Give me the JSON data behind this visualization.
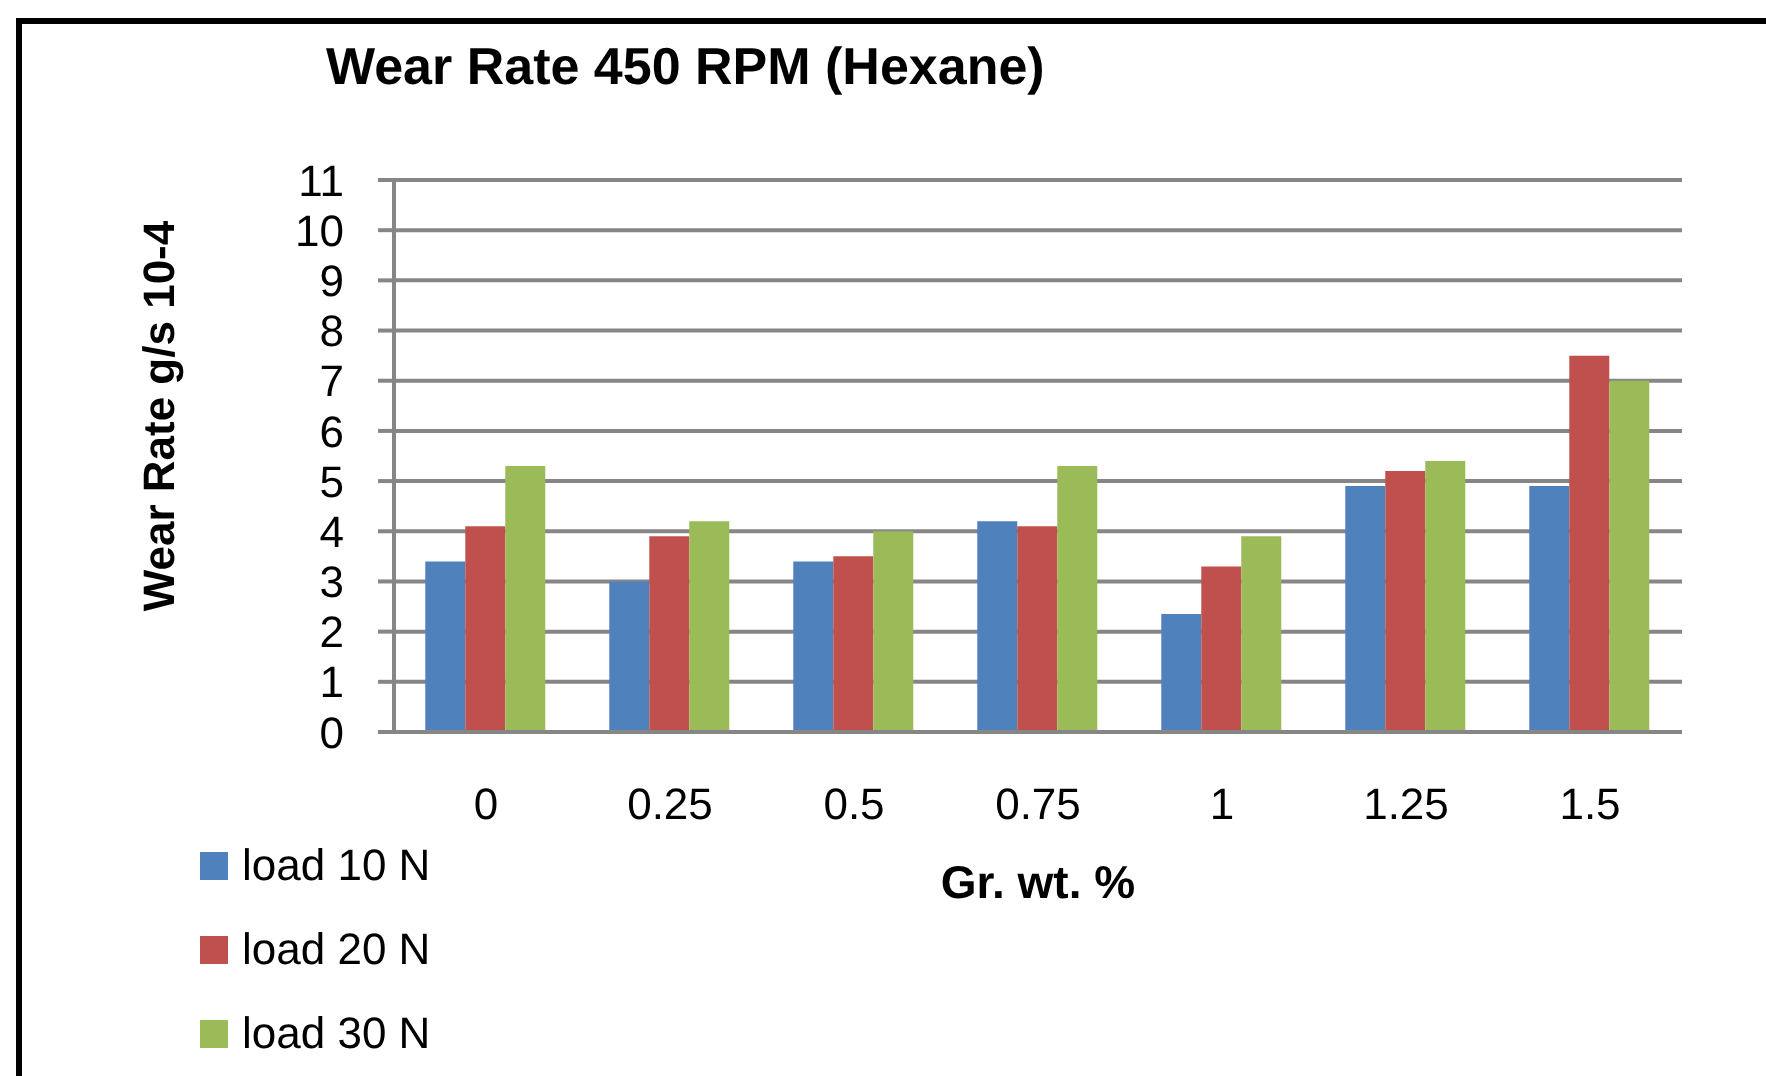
{
  "chart_data": {
    "type": "bar",
    "title": "Wear Rate 450 RPM (Hexane)",
    "xlabel": "Gr. wt. %",
    "ylabel": "Wear Rate g/s 10-4",
    "categories": [
      "0",
      "0.25",
      "0.5",
      "0.75",
      "1",
      "1.25",
      "1.5"
    ],
    "series": [
      {
        "name": "load 10 N",
        "color": "#4f81bd",
        "values": [
          3.4,
          3.0,
          3.4,
          4.2,
          2.35,
          4.9,
          4.9
        ]
      },
      {
        "name": "load 20 N",
        "color": "#c0504d",
        "values": [
          4.1,
          3.9,
          3.5,
          4.1,
          3.3,
          5.2,
          7.5
        ]
      },
      {
        "name": "load 30 N",
        "color": "#9bbb59",
        "values": [
          5.3,
          4.2,
          4.0,
          5.3,
          3.9,
          5.4,
          7.0
        ]
      }
    ],
    "ylim": [
      0,
      11
    ],
    "yticks": [
      0,
      1,
      2,
      3,
      4,
      5,
      6,
      7,
      8,
      9,
      10,
      11
    ],
    "grid": "y",
    "legend": "bottom left"
  }
}
